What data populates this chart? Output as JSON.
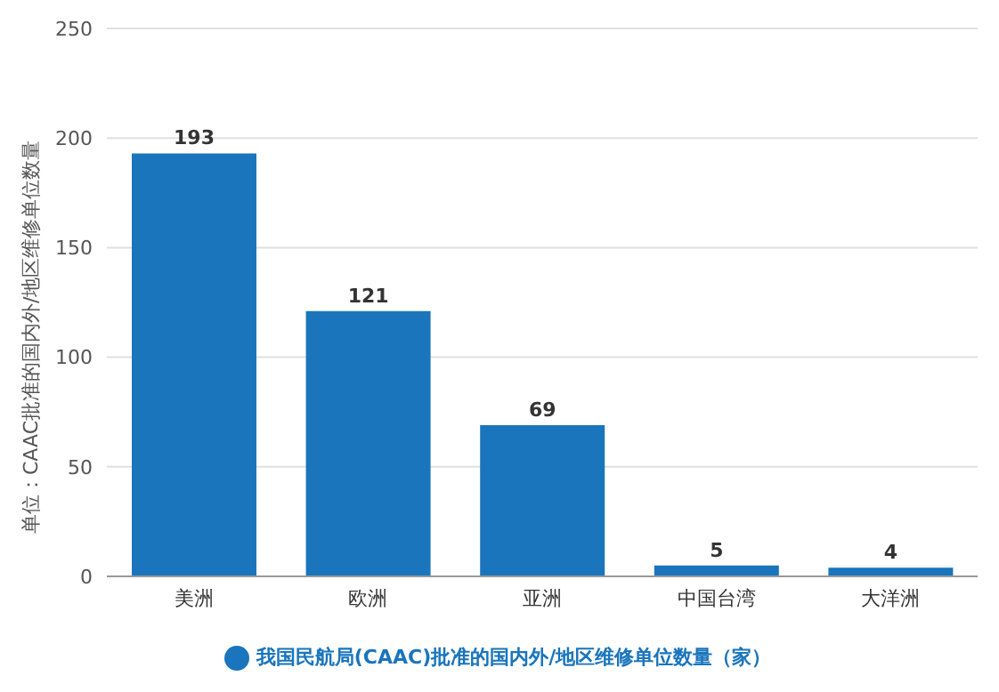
{
  "chart_data": {
    "type": "bar",
    "ylabel": "单位：CAAC批准的国内外/地区维修单位数量",
    "categories": [
      "美洲",
      "欧洲",
      "亚洲",
      "中国台湾",
      "大洋洲"
    ],
    "series": [
      {
        "name": "我国民航局(CAAC)批准的国内外/地区维修单位数量（家）",
        "color": "#1a75bc",
        "values": [
          193,
          121,
          69,
          5,
          4
        ]
      }
    ],
    "ylim": [
      0,
      250
    ],
    "yticks": [
      0,
      50,
      100,
      150,
      200,
      250
    ],
    "grid": "y",
    "legend": "bottom",
    "data_labels": true
  }
}
